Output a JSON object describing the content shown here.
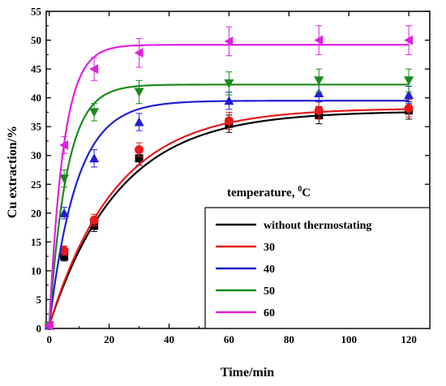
{
  "chart_data": {
    "type": "scatter",
    "xlabel": "Time/min",
    "ylabel": "Cu extraction/%",
    "xlim": [
      -1,
      127
    ],
    "ylim": [
      0,
      55
    ],
    "x_ticks": [
      0,
      20,
      40,
      60,
      80,
      100,
      120
    ],
    "y_ticks": [
      0,
      5,
      10,
      15,
      20,
      25,
      30,
      35,
      40,
      45,
      50,
      55
    ],
    "legend": {
      "title_main": "temperature, ",
      "title_sup": "0",
      "title_unit": "C",
      "placement": "bottom-right"
    },
    "x": [
      0,
      5,
      15,
      30,
      60,
      90,
      120
    ],
    "series": [
      {
        "name": "without thermostating",
        "color": "#000000",
        "marker": "square",
        "values": [
          0.5,
          12.5,
          17.8,
          29.5,
          35.5,
          37.0,
          37.8
        ],
        "errors": [
          0.4,
          0.8,
          1.0,
          1.2,
          1.5,
          1.5,
          1.5
        ],
        "fit": {
          "asymptote": 37.7,
          "rate": 0.043
        }
      },
      {
        "name": "30",
        "color": "#e41a1c",
        "marker": "circle",
        "values": [
          0.5,
          13.5,
          18.8,
          31.0,
          36.0,
          37.8,
          38.2
        ],
        "errors": [
          0.4,
          0.8,
          1.0,
          1.2,
          1.5,
          1.5,
          1.5
        ],
        "fit": {
          "asymptote": 38.2,
          "rate": 0.045
        }
      },
      {
        "name": "40",
        "color": "#1f1fd6",
        "marker": "triangle-up",
        "values": [
          0.5,
          20.0,
          29.5,
          35.8,
          39.5,
          40.8,
          40.5
        ],
        "errors": [
          0.5,
          1.0,
          1.5,
          1.5,
          1.5,
          1.5,
          1.5
        ],
        "fit": {
          "asymptote": 39.5,
          "rate": 0.11
        }
      },
      {
        "name": "50",
        "color": "#1a8a1a",
        "marker": "triangle-down",
        "values": [
          0.5,
          26.0,
          37.5,
          41.0,
          42.5,
          43.0,
          43.0
        ],
        "errors": [
          0.5,
          1.5,
          1.5,
          2.0,
          2.0,
          2.0,
          2.0
        ],
        "fit": {
          "asymptote": 42.3,
          "rate": 0.17
        }
      },
      {
        "name": "60",
        "color": "#e020e0",
        "marker": "triangle-left",
        "values": [
          0.5,
          31.8,
          45.0,
          47.8,
          49.8,
          50.0,
          50.0
        ],
        "errors": [
          0.5,
          1.5,
          2.0,
          2.5,
          2.5,
          2.5,
          2.5
        ],
        "fit": {
          "asymptote": 49.2,
          "rate": 0.21
        }
      }
    ]
  }
}
